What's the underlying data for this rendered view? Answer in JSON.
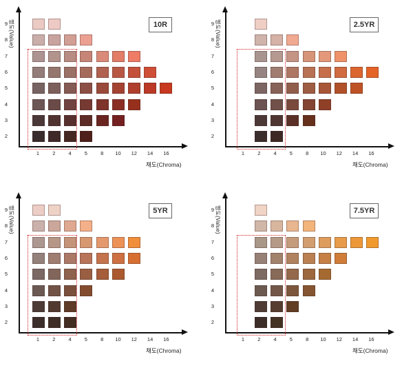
{
  "labels": {
    "value_axis": "명도(Value)",
    "chroma_axis": "채도(Chroma)",
    "value_ticks": [
      "2",
      "3",
      "4",
      "5",
      "6",
      "7",
      "8",
      "9"
    ],
    "chroma_ticks": [
      "1",
      "2",
      "4",
      "5",
      "8",
      "10",
      "12",
      "14",
      "16"
    ]
  },
  "panels": [
    {
      "hue": "10R",
      "chips": {
        "9": [
          "#ebcac4",
          "#eecac5"
        ],
        "8": [
          "#c9aea9",
          "#c9a39e",
          "#d19f94",
          "#eca091"
        ],
        "7": [
          "#ad9492",
          "#b2948d",
          "#b88c83",
          "#c68576",
          "#d98a78",
          "#e27d68",
          "#ef7c66"
        ],
        "6": [
          "#937c7a",
          "#95776f",
          "#9b7065",
          "#a66a5b",
          "#b0614f",
          "#b85844",
          "#c3513b",
          "#cf4e36"
        ],
        "5": [
          "#786363",
          "#7d5f5c",
          "#845a52",
          "#8d4f44",
          "#9a4a3a",
          "#a44332",
          "#b03f2d",
          "#bb3926",
          "#c8391f"
        ],
        "4": [
          "#6c5655",
          "#6a4b48",
          "#704240",
          "#763a33",
          "#7e332b",
          "#8a2e24",
          "#96301d"
        ],
        "3": [
          "#4a3738",
          "#513331",
          "#57302e",
          "#5d2c26",
          "#6a2520",
          "#742020"
        ],
        "2": [
          "#3a2c2c",
          "#3e2828",
          "#452621",
          "#4e2019"
        ]
      }
    },
    {
      "hue": "2.5YR",
      "chips": {
        "9": [
          "#efcfc4"
        ],
        "8": [
          "#cfb4ac",
          "#d5b1a6",
          "#f1aa91"
        ],
        "7": [
          "#a99590",
          "#b59890",
          "#c49484",
          "#d69479",
          "#e3987b",
          "#ef9269"
        ],
        "6": [
          "#958481",
          "#a07d70",
          "#ad7764",
          "#b87153",
          "#c66e4a",
          "#d06a41",
          "#db662f",
          "#e46428"
        ],
        "5": [
          "#7b6664",
          "#876258",
          "#925e4c",
          "#9e5c43",
          "#a85638",
          "#b15129",
          "#bf5225"
        ],
        "4": [
          "#6c5453",
          "#705048",
          "#7a4b3d",
          "#834431",
          "#8f4026"
        ],
        "3": [
          "#4c3937",
          "#503632",
          "#5b3127",
          "#66301c"
        ],
        "2": [
          "#3b2d2c",
          "#3d2824"
        ]
      }
    },
    {
      "hue": "5YR",
      "chips": {
        "9": [
          "#eccdc5",
          "#efd2c6"
        ],
        "8": [
          "#cbb1ab",
          "#cba69a",
          "#dfa991",
          "#f4b089"
        ],
        "7": [
          "#ad9891",
          "#b69787",
          "#c59478",
          "#d7976f",
          "#e3996d",
          "#ed9257",
          "#f08e3a"
        ],
        "6": [
          "#94817c",
          "#9f7d71",
          "#ab7966",
          "#b97559",
          "#c4734d",
          "#cd7142",
          "#d76f33"
        ],
        "5": [
          "#7b6865",
          "#83665b",
          "#8f624e",
          "#9a5f43",
          "#a55d3a",
          "#ab5a2f"
        ],
        "4": [
          "#6c5954",
          "#715447",
          "#7a4f3c",
          "#834c2e"
        ],
        "3": [
          "#4d3b37",
          "#533a31",
          "#5f3a26"
        ],
        "2": [
          "#3c2e2b",
          "#3e2d27",
          "#432c22"
        ]
      }
    },
    {
      "hue": "7.5YR",
      "chips": {
        "9": [
          "#f0d4c5"
        ],
        "8": [
          "#d1b7a8",
          "#d8b69e",
          "#e8b68f",
          "#f3b57b"
        ],
        "7": [
          "#a99787",
          "#b59a87",
          "#c49b7b",
          "#d29e6f",
          "#dd9c5c",
          "#e79b4b",
          "#ec9838",
          "#f09a2e"
        ],
        "6": [
          "#978177",
          "#a3826c",
          "#b0825f",
          "#bb8052",
          "#c68045",
          "#cf7d38"
        ],
        "5": [
          "#7d6b63",
          "#886a58",
          "#93684b",
          "#9c6840",
          "#a56a32"
        ],
        "4": [
          "#6c5a50",
          "#735849",
          "#7c573d",
          "#845530"
        ],
        "3": [
          "#4e3c35",
          "#563d2f",
          "#613d23"
        ],
        "2": [
          "#3c2d28",
          "#433124"
        ]
      }
    }
  ]
}
